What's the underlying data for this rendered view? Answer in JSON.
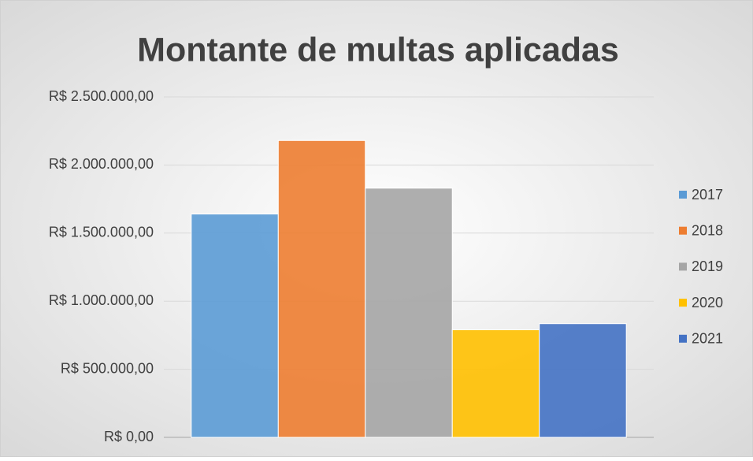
{
  "chart_data": {
    "type": "bar",
    "title": "Montante de multas aplicadas",
    "categories": [
      null
    ],
    "series": [
      {
        "name": "2017",
        "color": "#5b9bd5",
        "values": [
          1640000
        ]
      },
      {
        "name": "2018",
        "color": "#ed7d31",
        "values": [
          2180000
        ]
      },
      {
        "name": "2019",
        "color": "#a5a5a5",
        "values": [
          1830000
        ]
      },
      {
        "name": "2020",
        "color": "#ffc000",
        "values": [
          790000
        ]
      },
      {
        "name": "2021",
        "color": "#4472c4",
        "values": [
          835000
        ]
      }
    ],
    "ylim": [
      0,
      2500000
    ],
    "yticks": [
      {
        "value": 0,
        "label": "R$ 0,00"
      },
      {
        "value": 500000,
        "label": "R$ 500.000,00"
      },
      {
        "value": 1000000,
        "label": "R$ 1.000.000,00"
      },
      {
        "value": 1500000,
        "label": "R$ 1.500.000,00"
      },
      {
        "value": 2000000,
        "label": "R$ 2.000.000,00"
      },
      {
        "value": 2500000,
        "label": "R$ 2.500.000,00"
      }
    ],
    "grid": true,
    "legend": "right"
  }
}
